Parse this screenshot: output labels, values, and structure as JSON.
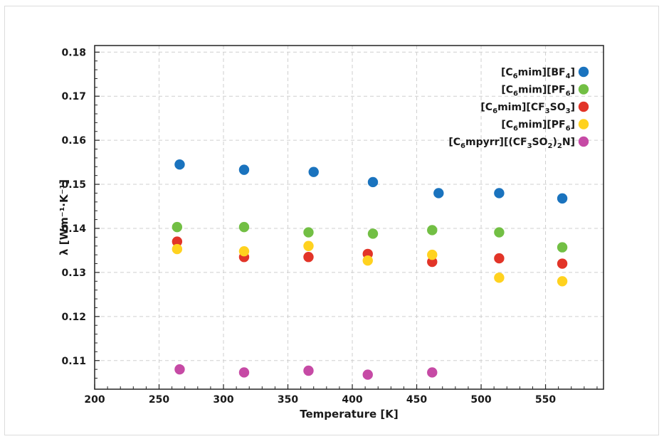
{
  "chart_data": {
    "type": "scatter",
    "xlabel": "Temperature [K]",
    "ylabel": "λ [Wm⁻¹·K⁻¹]",
    "xlim": [
      200,
      595
    ],
    "ylim": [
      0.1035,
      0.1815
    ],
    "x_ticks": [
      "200",
      "250",
      "300",
      "350",
      "400",
      "450",
      "500",
      "550"
    ],
    "y_ticks": [
      "0.11",
      "0.12",
      "0.13",
      "0.14",
      "0.15",
      "0.16",
      "0.17",
      "0.18"
    ],
    "grid": true,
    "legend_position": "top-right",
    "series": [
      {
        "name": "[C6mim][BF4]",
        "color": "#1a73be",
        "points": [
          [
            266,
            0.1545
          ],
          [
            316,
            0.1533
          ],
          [
            370,
            0.1528
          ],
          [
            416,
            0.1505
          ],
          [
            467,
            0.148
          ],
          [
            514,
            0.148
          ],
          [
            563,
            0.1468
          ]
        ]
      },
      {
        "name": "[C6mim][PF6]",
        "color": "#72bf44",
        "points": [
          [
            264,
            0.1403
          ],
          [
            316,
            0.1403
          ],
          [
            366,
            0.1391
          ],
          [
            416,
            0.1388
          ],
          [
            462,
            0.1396
          ],
          [
            514,
            0.1391
          ],
          [
            563,
            0.1357
          ]
        ]
      },
      {
        "name": "[C6mim][CF3SO3]",
        "color": "#e23428",
        "points": [
          [
            264,
            0.137
          ],
          [
            316,
            0.1335
          ],
          [
            366,
            0.1335
          ],
          [
            412,
            0.1342
          ],
          [
            462,
            0.1324
          ],
          [
            514,
            0.1332
          ],
          [
            563,
            0.132
          ]
        ]
      },
      {
        "name": "[C6mim][PF6]",
        "color": "#ffd21f",
        "points": [
          [
            264,
            0.1353
          ],
          [
            316,
            0.1348
          ],
          [
            366,
            0.136
          ],
          [
            412,
            0.1327
          ],
          [
            462,
            0.134
          ],
          [
            514,
            0.1288
          ],
          [
            563,
            0.128
          ]
        ]
      },
      {
        "name": "[C6mpyrr][(CF3SO2)2N]",
        "color": "#c64aa5",
        "points": [
          [
            266,
            0.108
          ],
          [
            316,
            0.1073
          ],
          [
            366,
            0.1077
          ],
          [
            412,
            0.1068
          ],
          [
            462,
            0.1073
          ]
        ]
      }
    ]
  },
  "legend": {
    "entries": [
      {
        "parts": [
          [
            "[C",
            ""
          ],
          [
            "6",
            "sub"
          ],
          [
            "mim][BF",
            ""
          ],
          [
            "4",
            "sub"
          ],
          [
            "]",
            ""
          ]
        ]
      },
      {
        "parts": [
          [
            "[C",
            ""
          ],
          [
            "6",
            "sub"
          ],
          [
            "mim][PF",
            ""
          ],
          [
            "6",
            "sub"
          ],
          [
            "]",
            ""
          ]
        ]
      },
      {
        "parts": [
          [
            "[C",
            ""
          ],
          [
            "6",
            "sub"
          ],
          [
            "mim][CF",
            ""
          ],
          [
            "3",
            "sub"
          ],
          [
            "SO",
            ""
          ],
          [
            "3",
            "sub"
          ],
          [
            "]",
            ""
          ]
        ]
      },
      {
        "parts": [
          [
            "[C",
            ""
          ],
          [
            "6",
            "sub"
          ],
          [
            "mim][PF",
            ""
          ],
          [
            "6",
            "sub"
          ],
          [
            "]",
            ""
          ]
        ]
      },
      {
        "parts": [
          [
            "[C",
            ""
          ],
          [
            "6",
            "sub"
          ],
          [
            "mpyrr][(CF",
            ""
          ],
          [
            "3",
            "sub"
          ],
          [
            "SO",
            ""
          ],
          [
            "2",
            "sub"
          ],
          [
            ")",
            ""
          ],
          [
            "2",
            "sub"
          ],
          [
            "N]",
            ""
          ]
        ]
      }
    ]
  }
}
